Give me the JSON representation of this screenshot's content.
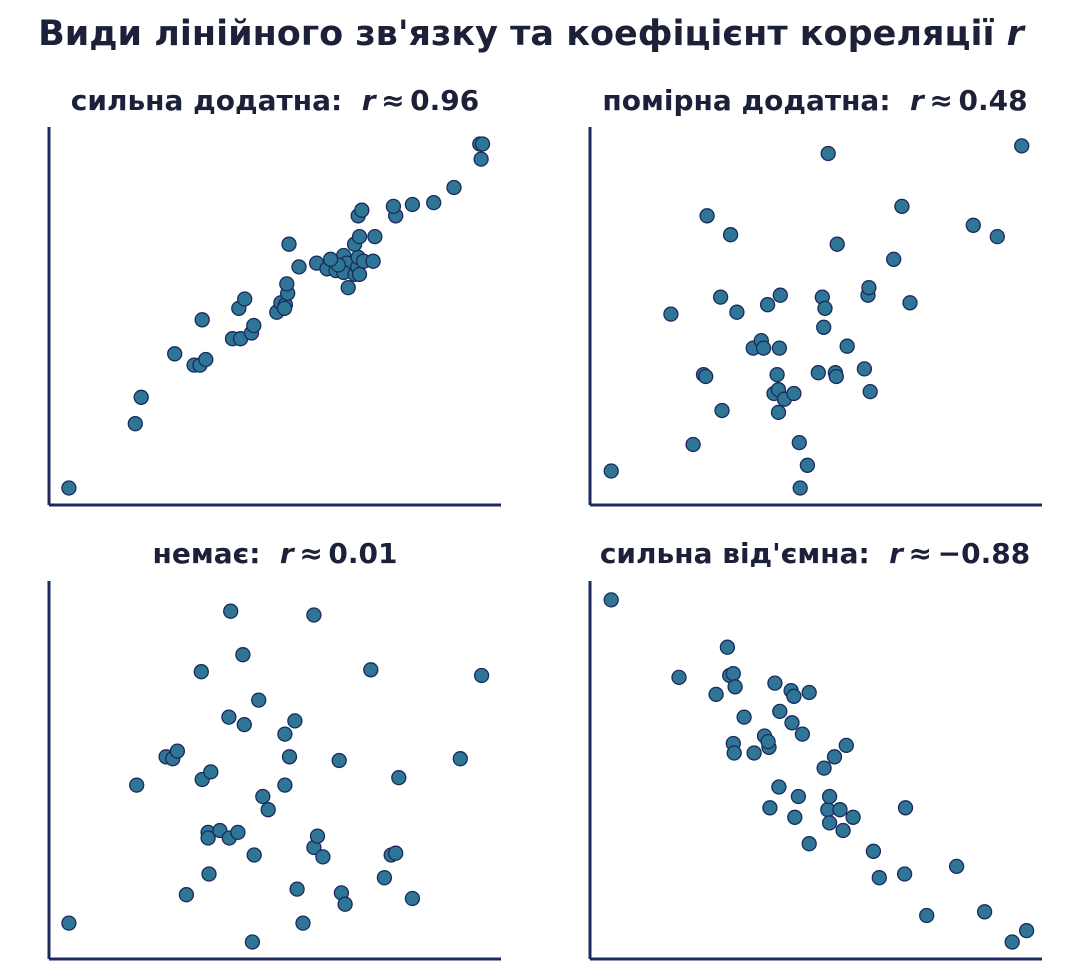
{
  "title": {
    "text": "Види лінійного зв'язку та коефіцієнт кореляції",
    "var": "r"
  },
  "colors": {
    "point_fill": "#2e7596",
    "point_edge": "#1b2a5c",
    "axis": "#1f2a5c",
    "text": "#1c2038"
  },
  "chart_data": [
    {
      "type": "scatter",
      "label": "сильна додатна:",
      "var": "r",
      "rel": "≈",
      "r_text": "0.96",
      "xlim": [
        0,
        10
      ],
      "ylim": [
        0,
        10
      ],
      "grid": false,
      "points": [
        [
          0.44,
          0.45
        ],
        [
          1.91,
          2.15
        ],
        [
          2.04,
          2.85
        ],
        [
          2.78,
          4.0
        ],
        [
          3.21,
          3.7
        ],
        [
          3.34,
          3.7
        ],
        [
          3.47,
          3.85
        ],
        [
          3.39,
          4.9
        ],
        [
          4.06,
          4.4
        ],
        [
          4.24,
          4.4
        ],
        [
          4.48,
          4.55
        ],
        [
          4.53,
          4.75
        ],
        [
          4.2,
          5.2
        ],
        [
          4.33,
          5.45
        ],
        [
          5.04,
          5.1
        ],
        [
          5.13,
          5.35
        ],
        [
          5.23,
          5.3
        ],
        [
          5.21,
          5.2
        ],
        [
          5.28,
          5.6
        ],
        [
          5.26,
          5.85
        ],
        [
          5.53,
          6.3
        ],
        [
          5.92,
          6.4
        ],
        [
          6.15,
          6.25
        ],
        [
          6.35,
          6.2
        ],
        [
          6.52,
          6.6
        ],
        [
          6.59,
          6.4
        ],
        [
          6.52,
          6.15
        ],
        [
          6.4,
          6.35
        ],
        [
          6.23,
          6.5
        ],
        [
          6.62,
          5.75
        ],
        [
          6.77,
          6.1
        ],
        [
          6.83,
          6.3
        ],
        [
          6.84,
          6.55
        ],
        [
          6.87,
          6.1
        ],
        [
          6.96,
          6.45
        ],
        [
          7.17,
          6.45
        ],
        [
          6.76,
          6.9
        ],
        [
          6.87,
          7.1
        ],
        [
          7.21,
          7.1
        ],
        [
          5.31,
          6.9
        ],
        [
          7.67,
          7.65
        ],
        [
          7.62,
          7.9
        ],
        [
          6.84,
          7.65
        ],
        [
          6.92,
          7.8
        ],
        [
          8.04,
          7.95
        ],
        [
          8.51,
          8.0
        ],
        [
          8.96,
          8.4
        ],
        [
          9.53,
          9.55
        ],
        [
          9.56,
          9.15
        ],
        [
          9.59,
          9.55
        ]
      ]
    },
    {
      "type": "scatter",
      "label": "помірна додатна:",
      "var": "r",
      "rel": "≈",
      "r_text": "0.48",
      "xlim": [
        0,
        10
      ],
      "ylim": [
        0,
        10
      ],
      "grid": false,
      "points": [
        [
          0.47,
          0.9
        ],
        [
          1.79,
          5.05
        ],
        [
          2.28,
          1.6
        ],
        [
          2.59,
          7.65
        ],
        [
          2.51,
          3.45
        ],
        [
          2.89,
          5.5
        ],
        [
          2.56,
          3.4
        ],
        [
          2.92,
          2.5
        ],
        [
          3.11,
          7.15
        ],
        [
          3.25,
          5.1
        ],
        [
          3.61,
          4.15
        ],
        [
          3.79,
          4.35
        ],
        [
          3.84,
          4.15
        ],
        [
          3.93,
          5.3
        ],
        [
          4.14,
          3.45
        ],
        [
          4.07,
          2.95
        ],
        [
          4.17,
          3.05
        ],
        [
          4.17,
          2.45
        ],
        [
          4.21,
          5.55
        ],
        [
          4.19,
          4.15
        ],
        [
          4.3,
          2.8
        ],
        [
          4.51,
          2.95
        ],
        [
          4.63,
          1.65
        ],
        [
          4.81,
          1.05
        ],
        [
          4.65,
          0.45
        ],
        [
          5.05,
          3.5
        ],
        [
          5.17,
          4.7
        ],
        [
          5.14,
          5.5
        ],
        [
          5.2,
          5.2
        ],
        [
          5.43,
          3.5
        ],
        [
          5.45,
          3.4
        ],
        [
          5.47,
          6.9
        ],
        [
          5.69,
          4.2
        ],
        [
          6.07,
          3.6
        ],
        [
          6.15,
          5.55
        ],
        [
          6.17,
          5.75
        ],
        [
          6.2,
          3.0
        ],
        [
          5.27,
          9.3
        ],
        [
          6.72,
          6.5
        ],
        [
          6.9,
          7.9
        ],
        [
          7.08,
          5.35
        ],
        [
          8.48,
          7.4
        ],
        [
          9.01,
          7.1
        ],
        [
          9.55,
          9.5
        ]
      ]
    },
    {
      "type": "scatter",
      "label": "немає:",
      "var": "r",
      "rel": "≈",
      "r_text": "0.01",
      "xlim": [
        0,
        10
      ],
      "ylim": [
        0,
        10
      ],
      "grid": false,
      "points": [
        [
          0.44,
          0.95
        ],
        [
          1.94,
          4.6
        ],
        [
          2.59,
          5.35
        ],
        [
          2.74,
          5.3
        ],
        [
          2.84,
          5.5
        ],
        [
          3.04,
          1.7
        ],
        [
          3.37,
          7.6
        ],
        [
          3.39,
          4.75
        ],
        [
          3.52,
          3.35
        ],
        [
          3.52,
          3.2
        ],
        [
          3.54,
          2.25
        ],
        [
          3.58,
          4.95
        ],
        [
          3.78,
          3.4
        ],
        [
          3.98,
          6.4
        ],
        [
          4.02,
          9.2
        ],
        [
          3.99,
          3.2
        ],
        [
          4.18,
          3.35
        ],
        [
          4.29,
          8.05
        ],
        [
          4.32,
          6.2
        ],
        [
          4.5,
          0.45
        ],
        [
          4.54,
          2.75
        ],
        [
          4.64,
          6.85
        ],
        [
          4.73,
          4.3
        ],
        [
          4.85,
          3.95
        ],
        [
          5.22,
          4.6
        ],
        [
          5.22,
          5.95
        ],
        [
          5.32,
          5.35
        ],
        [
          5.49,
          1.85
        ],
        [
          5.44,
          6.3
        ],
        [
          5.62,
          0.95
        ],
        [
          5.86,
          9.1
        ],
        [
          5.86,
          2.95
        ],
        [
          5.94,
          3.25
        ],
        [
          6.06,
          2.7
        ],
        [
          6.47,
          1.75
        ],
        [
          6.55,
          1.45
        ],
        [
          6.42,
          5.25
        ],
        [
          7.12,
          7.65
        ],
        [
          7.42,
          2.15
        ],
        [
          7.57,
          2.75
        ],
        [
          7.67,
          2.8
        ],
        [
          7.74,
          4.8
        ],
        [
          8.04,
          1.6
        ],
        [
          9.1,
          5.3
        ],
        [
          9.57,
          7.5
        ]
      ]
    },
    {
      "type": "scatter",
      "label": "сильна від'ємна:",
      "var": "r",
      "rel": "≈",
      "r_text": "−0.88",
      "xlim": [
        0,
        10
      ],
      "ylim": [
        0,
        10
      ],
      "grid": false,
      "points": [
        [
          0.47,
          9.5
        ],
        [
          1.97,
          7.45
        ],
        [
          2.79,
          7.0
        ],
        [
          3.04,
          8.25
        ],
        [
          3.09,
          7.5
        ],
        [
          3.17,
          7.55
        ],
        [
          3.21,
          7.2
        ],
        [
          3.17,
          5.7
        ],
        [
          3.19,
          5.45
        ],
        [
          3.41,
          6.4
        ],
        [
          3.63,
          5.45
        ],
        [
          3.86,
          5.9
        ],
        [
          3.96,
          5.6
        ],
        [
          3.94,
          5.75
        ],
        [
          3.98,
          4.0
        ],
        [
          4.09,
          7.3
        ],
        [
          4.18,
          4.55
        ],
        [
          4.2,
          6.55
        ],
        [
          4.45,
          7.1
        ],
        [
          4.47,
          6.25
        ],
        [
          4.51,
          6.95
        ],
        [
          4.53,
          3.75
        ],
        [
          4.61,
          4.3
        ],
        [
          4.7,
          5.95
        ],
        [
          4.85,
          7.05
        ],
        [
          4.85,
          3.05
        ],
        [
          5.18,
          5.05
        ],
        [
          5.26,
          3.95
        ],
        [
          5.3,
          4.3
        ],
        [
          5.3,
          3.6
        ],
        [
          5.41,
          5.35
        ],
        [
          5.53,
          3.95
        ],
        [
          5.6,
          3.4
        ],
        [
          5.67,
          5.65
        ],
        [
          5.82,
          3.75
        ],
        [
          6.27,
          2.85
        ],
        [
          6.4,
          2.15
        ],
        [
          6.96,
          2.25
        ],
        [
          6.98,
          4.0
        ],
        [
          7.45,
          1.15
        ],
        [
          8.11,
          2.45
        ],
        [
          8.73,
          1.25
        ],
        [
          9.34,
          0.45
        ],
        [
          9.66,
          0.75
        ]
      ]
    }
  ]
}
